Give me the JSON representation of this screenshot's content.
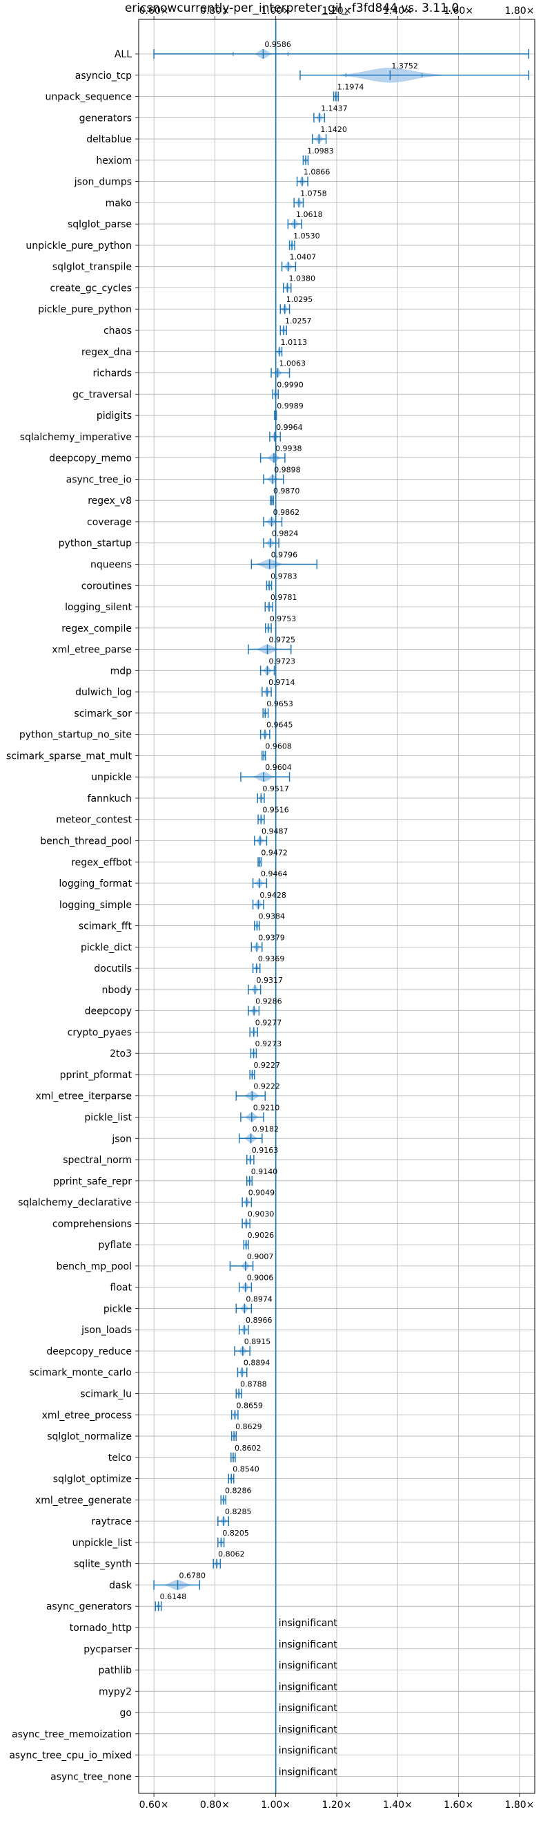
{
  "chart_data": {
    "type": "violin",
    "title": "ericsnowcurrently-per_interpreter_gil_-f3fd844 vs. 3.11.0",
    "xlabel": "",
    "ylabel": "",
    "xlim": [
      0.55,
      1.85
    ],
    "x_ticks": [
      0.6,
      0.8,
      1.0,
      1.2,
      1.4,
      1.6,
      1.8
    ],
    "x_tick_labels": [
      "0.60×",
      "0.80×",
      "1.00×",
      "1.20×",
      "1.40×",
      "1.60×",
      "1.80×"
    ],
    "reference_line": 1.0,
    "grid": true,
    "colors": {
      "violin": "#9dc3e6",
      "whisker": "#1f77b4",
      "reference": "#1f77b4"
    },
    "benchmarks": [
      {
        "name": "ALL",
        "label": "0.9586",
        "median": 0.9586,
        "min": 0.6,
        "max": 1.83,
        "q1": 0.86,
        "q3": 1.04,
        "spread": 0.04
      },
      {
        "name": "asyncio_tcp",
        "label": "1.3752",
        "median": 1.3752,
        "min": 1.08,
        "max": 1.83,
        "q1": 1.23,
        "q3": 1.48,
        "spread": 0.22
      },
      {
        "name": "unpack_sequence",
        "label": "1.1974",
        "median": 1.1974,
        "min": 1.19,
        "max": 1.205,
        "spread": 0.008
      },
      {
        "name": "generators",
        "label": "1.1437",
        "median": 1.1437,
        "min": 1.125,
        "max": 1.16,
        "spread": 0.015
      },
      {
        "name": "deltablue",
        "label": "1.1420",
        "median": 1.142,
        "min": 1.12,
        "max": 1.165,
        "spread": 0.02
      },
      {
        "name": "hexiom",
        "label": "1.0983",
        "median": 1.0983,
        "min": 1.09,
        "max": 1.106,
        "spread": 0.008
      },
      {
        "name": "json_dumps",
        "label": "1.0866",
        "median": 1.0866,
        "min": 1.07,
        "max": 1.105,
        "spread": 0.016
      },
      {
        "name": "mako",
        "label": "1.0758",
        "median": 1.0758,
        "min": 1.06,
        "max": 1.09,
        "spread": 0.015
      },
      {
        "name": "sqlglot_parse",
        "label": "1.0618",
        "median": 1.0618,
        "min": 1.04,
        "max": 1.085,
        "spread": 0.02
      },
      {
        "name": "unpickle_pure_python",
        "label": "1.0530",
        "median": 1.053,
        "min": 1.045,
        "max": 1.062,
        "spread": 0.008
      },
      {
        "name": "sqlglot_transpile",
        "label": "1.0407",
        "median": 1.0407,
        "min": 1.02,
        "max": 1.065,
        "spread": 0.02
      },
      {
        "name": "create_gc_cycles",
        "label": "1.0380",
        "median": 1.038,
        "min": 1.025,
        "max": 1.05,
        "spread": 0.012
      },
      {
        "name": "pickle_pure_python",
        "label": "1.0295",
        "median": 1.0295,
        "min": 1.015,
        "max": 1.045,
        "spread": 0.015
      },
      {
        "name": "chaos",
        "label": "1.0257",
        "median": 1.0257,
        "min": 1.015,
        "max": 1.035,
        "spread": 0.01
      },
      {
        "name": "regex_dna",
        "label": "1.0113",
        "median": 1.0113,
        "min": 1.0,
        "max": 1.02,
        "spread": 0.01
      },
      {
        "name": "richards",
        "label": "1.0063",
        "median": 1.0063,
        "min": 0.985,
        "max": 1.045,
        "spread": 0.02
      },
      {
        "name": "gc_traversal",
        "label": "0.9990",
        "median": 0.999,
        "min": 0.99,
        "max": 1.008,
        "spread": 0.008
      },
      {
        "name": "pidigits",
        "label": "0.9989",
        "median": 0.9989,
        "min": 0.996,
        "max": 1.002,
        "spread": 0.004
      },
      {
        "name": "sqlalchemy_imperative",
        "label": "0.9964",
        "median": 0.9964,
        "min": 0.98,
        "max": 1.015,
        "spread": 0.015
      },
      {
        "name": "deepcopy_memo",
        "label": "0.9938",
        "median": 0.9938,
        "min": 0.95,
        "max": 1.03,
        "spread": 0.03
      },
      {
        "name": "async_tree_io",
        "label": "0.9898",
        "median": 0.9898,
        "min": 0.96,
        "max": 1.025,
        "spread": 0.025
      },
      {
        "name": "regex_v8",
        "label": "0.9870",
        "median": 0.987,
        "min": 0.982,
        "max": 0.992,
        "spread": 0.005
      },
      {
        "name": "coverage",
        "label": "0.9862",
        "median": 0.9862,
        "min": 0.96,
        "max": 1.02,
        "spread": 0.025
      },
      {
        "name": "python_startup",
        "label": "0.9824",
        "median": 0.9824,
        "min": 0.96,
        "max": 1.01,
        "spread": 0.02
      },
      {
        "name": "nqueens",
        "label": "0.9796",
        "median": 0.9796,
        "min": 0.92,
        "max": 1.135,
        "spread": 0.06
      },
      {
        "name": "coroutines",
        "label": "0.9783",
        "median": 0.9783,
        "min": 0.97,
        "max": 0.986,
        "spread": 0.008
      },
      {
        "name": "logging_silent",
        "label": "0.9781",
        "median": 0.9781,
        "min": 0.965,
        "max": 0.99,
        "spread": 0.012
      },
      {
        "name": "regex_compile",
        "label": "0.9753",
        "median": 0.9753,
        "min": 0.966,
        "max": 0.985,
        "spread": 0.008
      },
      {
        "name": "xml_etree_parse",
        "label": "0.9725",
        "median": 0.9725,
        "min": 0.91,
        "max": 1.05,
        "spread": 0.05
      },
      {
        "name": "mdp",
        "label": "0.9723",
        "median": 0.9723,
        "min": 0.95,
        "max": 0.995,
        "spread": 0.02
      },
      {
        "name": "dulwich_log",
        "label": "0.9714",
        "median": 0.9714,
        "min": 0.955,
        "max": 0.985,
        "spread": 0.015
      },
      {
        "name": "scimark_sor",
        "label": "0.9653",
        "median": 0.9653,
        "min": 0.958,
        "max": 0.975,
        "spread": 0.008
      },
      {
        "name": "python_startup_no_site",
        "label": "0.9645",
        "median": 0.9645,
        "min": 0.95,
        "max": 0.98,
        "spread": 0.015
      },
      {
        "name": "scimark_sparse_mat_mult",
        "label": "0.9608",
        "median": 0.9608,
        "min": 0.955,
        "max": 0.966,
        "spread": 0.004
      },
      {
        "name": "unpickle",
        "label": "0.9604",
        "median": 0.9604,
        "min": 0.885,
        "max": 1.045,
        "spread": 0.05
      },
      {
        "name": "fannkuch",
        "label": "0.9517",
        "median": 0.9517,
        "min": 0.94,
        "max": 0.962,
        "spread": 0.01
      },
      {
        "name": "meteor_contest",
        "label": "0.9516",
        "median": 0.9516,
        "min": 0.942,
        "max": 0.962,
        "spread": 0.01
      },
      {
        "name": "bench_thread_pool",
        "label": "0.9487",
        "median": 0.9487,
        "min": 0.93,
        "max": 0.97,
        "spread": 0.018
      },
      {
        "name": "regex_effbot",
        "label": "0.9472",
        "median": 0.9472,
        "min": 0.942,
        "max": 0.952,
        "spread": 0.004
      },
      {
        "name": "logging_format",
        "label": "0.9464",
        "median": 0.9464,
        "min": 0.925,
        "max": 0.97,
        "spread": 0.02
      },
      {
        "name": "logging_simple",
        "label": "0.9428",
        "median": 0.9428,
        "min": 0.925,
        "max": 0.96,
        "spread": 0.018
      },
      {
        "name": "scimark_fft",
        "label": "0.9384",
        "median": 0.9384,
        "min": 0.93,
        "max": 0.946,
        "spread": 0.008
      },
      {
        "name": "pickle_dict",
        "label": "0.9379",
        "median": 0.9379,
        "min": 0.92,
        "max": 0.955,
        "spread": 0.016
      },
      {
        "name": "docutils",
        "label": "0.9369",
        "median": 0.9369,
        "min": 0.925,
        "max": 0.948,
        "spread": 0.01
      },
      {
        "name": "nbody",
        "label": "0.9317",
        "median": 0.9317,
        "min": 0.91,
        "max": 0.95,
        "spread": 0.016
      },
      {
        "name": "deepcopy",
        "label": "0.9286",
        "median": 0.9286,
        "min": 0.91,
        "max": 0.945,
        "spread": 0.016
      },
      {
        "name": "crypto_pyaes",
        "label": "0.9277",
        "median": 0.9277,
        "min": 0.915,
        "max": 0.94,
        "spread": 0.01
      },
      {
        "name": "2to3",
        "label": "0.9273",
        "median": 0.9273,
        "min": 0.918,
        "max": 0.936,
        "spread": 0.008
      },
      {
        "name": "pprint_pformat",
        "label": "0.9227",
        "median": 0.9227,
        "min": 0.915,
        "max": 0.93,
        "spread": 0.008
      },
      {
        "name": "xml_etree_iterparse",
        "label": "0.9222",
        "median": 0.9222,
        "min": 0.87,
        "max": 0.965,
        "spread": 0.035
      },
      {
        "name": "pickle_list",
        "label": "0.9210",
        "median": 0.921,
        "min": 0.885,
        "max": 0.96,
        "spread": 0.03
      },
      {
        "name": "json",
        "label": "0.9182",
        "median": 0.9182,
        "min": 0.88,
        "max": 0.955,
        "spread": 0.03
      },
      {
        "name": "spectral_norm",
        "label": "0.9163",
        "median": 0.9163,
        "min": 0.905,
        "max": 0.928,
        "spread": 0.01
      },
      {
        "name": "pprint_safe_repr",
        "label": "0.9140",
        "median": 0.914,
        "min": 0.905,
        "max": 0.922,
        "spread": 0.008
      },
      {
        "name": "sqlalchemy_declarative",
        "label": "0.9049",
        "median": 0.9049,
        "min": 0.89,
        "max": 0.92,
        "spread": 0.014
      },
      {
        "name": "comprehensions",
        "label": "0.9030",
        "median": 0.903,
        "min": 0.89,
        "max": 0.915,
        "spread": 0.012
      },
      {
        "name": "pyflate",
        "label": "0.9026",
        "median": 0.9026,
        "min": 0.895,
        "max": 0.91,
        "spread": 0.008
      },
      {
        "name": "bench_mp_pool",
        "label": "0.9007",
        "median": 0.9007,
        "min": 0.85,
        "max": 0.925,
        "spread": 0.02
      },
      {
        "name": "float",
        "label": "0.9006",
        "median": 0.9006,
        "min": 0.88,
        "max": 0.92,
        "spread": 0.018
      },
      {
        "name": "pickle",
        "label": "0.8974",
        "median": 0.8974,
        "min": 0.87,
        "max": 0.92,
        "spread": 0.02
      },
      {
        "name": "json_loads",
        "label": "0.8966",
        "median": 0.8966,
        "min": 0.88,
        "max": 0.91,
        "spread": 0.014
      },
      {
        "name": "deepcopy_reduce",
        "label": "0.8915",
        "median": 0.8915,
        "min": 0.865,
        "max": 0.915,
        "spread": 0.02
      },
      {
        "name": "scimark_monte_carlo",
        "label": "0.8894",
        "median": 0.8894,
        "min": 0.875,
        "max": 0.905,
        "spread": 0.014
      },
      {
        "name": "scimark_lu",
        "label": "0.8788",
        "median": 0.8788,
        "min": 0.87,
        "max": 0.888,
        "spread": 0.008
      },
      {
        "name": "xml_etree_process",
        "label": "0.8659",
        "median": 0.8659,
        "min": 0.855,
        "max": 0.876,
        "spread": 0.01
      },
      {
        "name": "sqlglot_normalize",
        "label": "0.8629",
        "median": 0.8629,
        "min": 0.855,
        "max": 0.87,
        "spread": 0.008
      },
      {
        "name": "telco",
        "label": "0.8602",
        "median": 0.8602,
        "min": 0.853,
        "max": 0.867,
        "spread": 0.006
      },
      {
        "name": "sqlglot_optimize",
        "label": "0.8540",
        "median": 0.854,
        "min": 0.845,
        "max": 0.862,
        "spread": 0.008
      },
      {
        "name": "xml_etree_generate",
        "label": "0.8286",
        "median": 0.8286,
        "min": 0.82,
        "max": 0.836,
        "spread": 0.008
      },
      {
        "name": "raytrace",
        "label": "0.8285",
        "median": 0.8285,
        "min": 0.81,
        "max": 0.845,
        "spread": 0.016
      },
      {
        "name": "unpickle_list",
        "label": "0.8205",
        "median": 0.8205,
        "min": 0.81,
        "max": 0.83,
        "spread": 0.01
      },
      {
        "name": "sqlite_synth",
        "label": "0.8062",
        "median": 0.8062,
        "min": 0.795,
        "max": 0.818,
        "spread": 0.01
      },
      {
        "name": "dask",
        "label": "0.6780",
        "median": 0.678,
        "min": 0.6,
        "max": 0.75,
        "spread": 0.06
      },
      {
        "name": "async_generators",
        "label": "0.6148",
        "median": 0.6148,
        "min": 0.605,
        "max": 0.624,
        "spread": 0.008
      },
      {
        "name": "tornado_http",
        "label": "insignificant",
        "median": null
      },
      {
        "name": "pycparser",
        "label": "insignificant",
        "median": null
      },
      {
        "name": "pathlib",
        "label": "insignificant",
        "median": null
      },
      {
        "name": "mypy2",
        "label": "insignificant",
        "median": null
      },
      {
        "name": "go",
        "label": "insignificant",
        "median": null
      },
      {
        "name": "async_tree_memoization",
        "label": "insignificant",
        "median": null
      },
      {
        "name": "async_tree_cpu_io_mixed",
        "label": "insignificant",
        "median": null
      },
      {
        "name": "async_tree_none",
        "label": "insignificant",
        "median": null
      }
    ]
  }
}
